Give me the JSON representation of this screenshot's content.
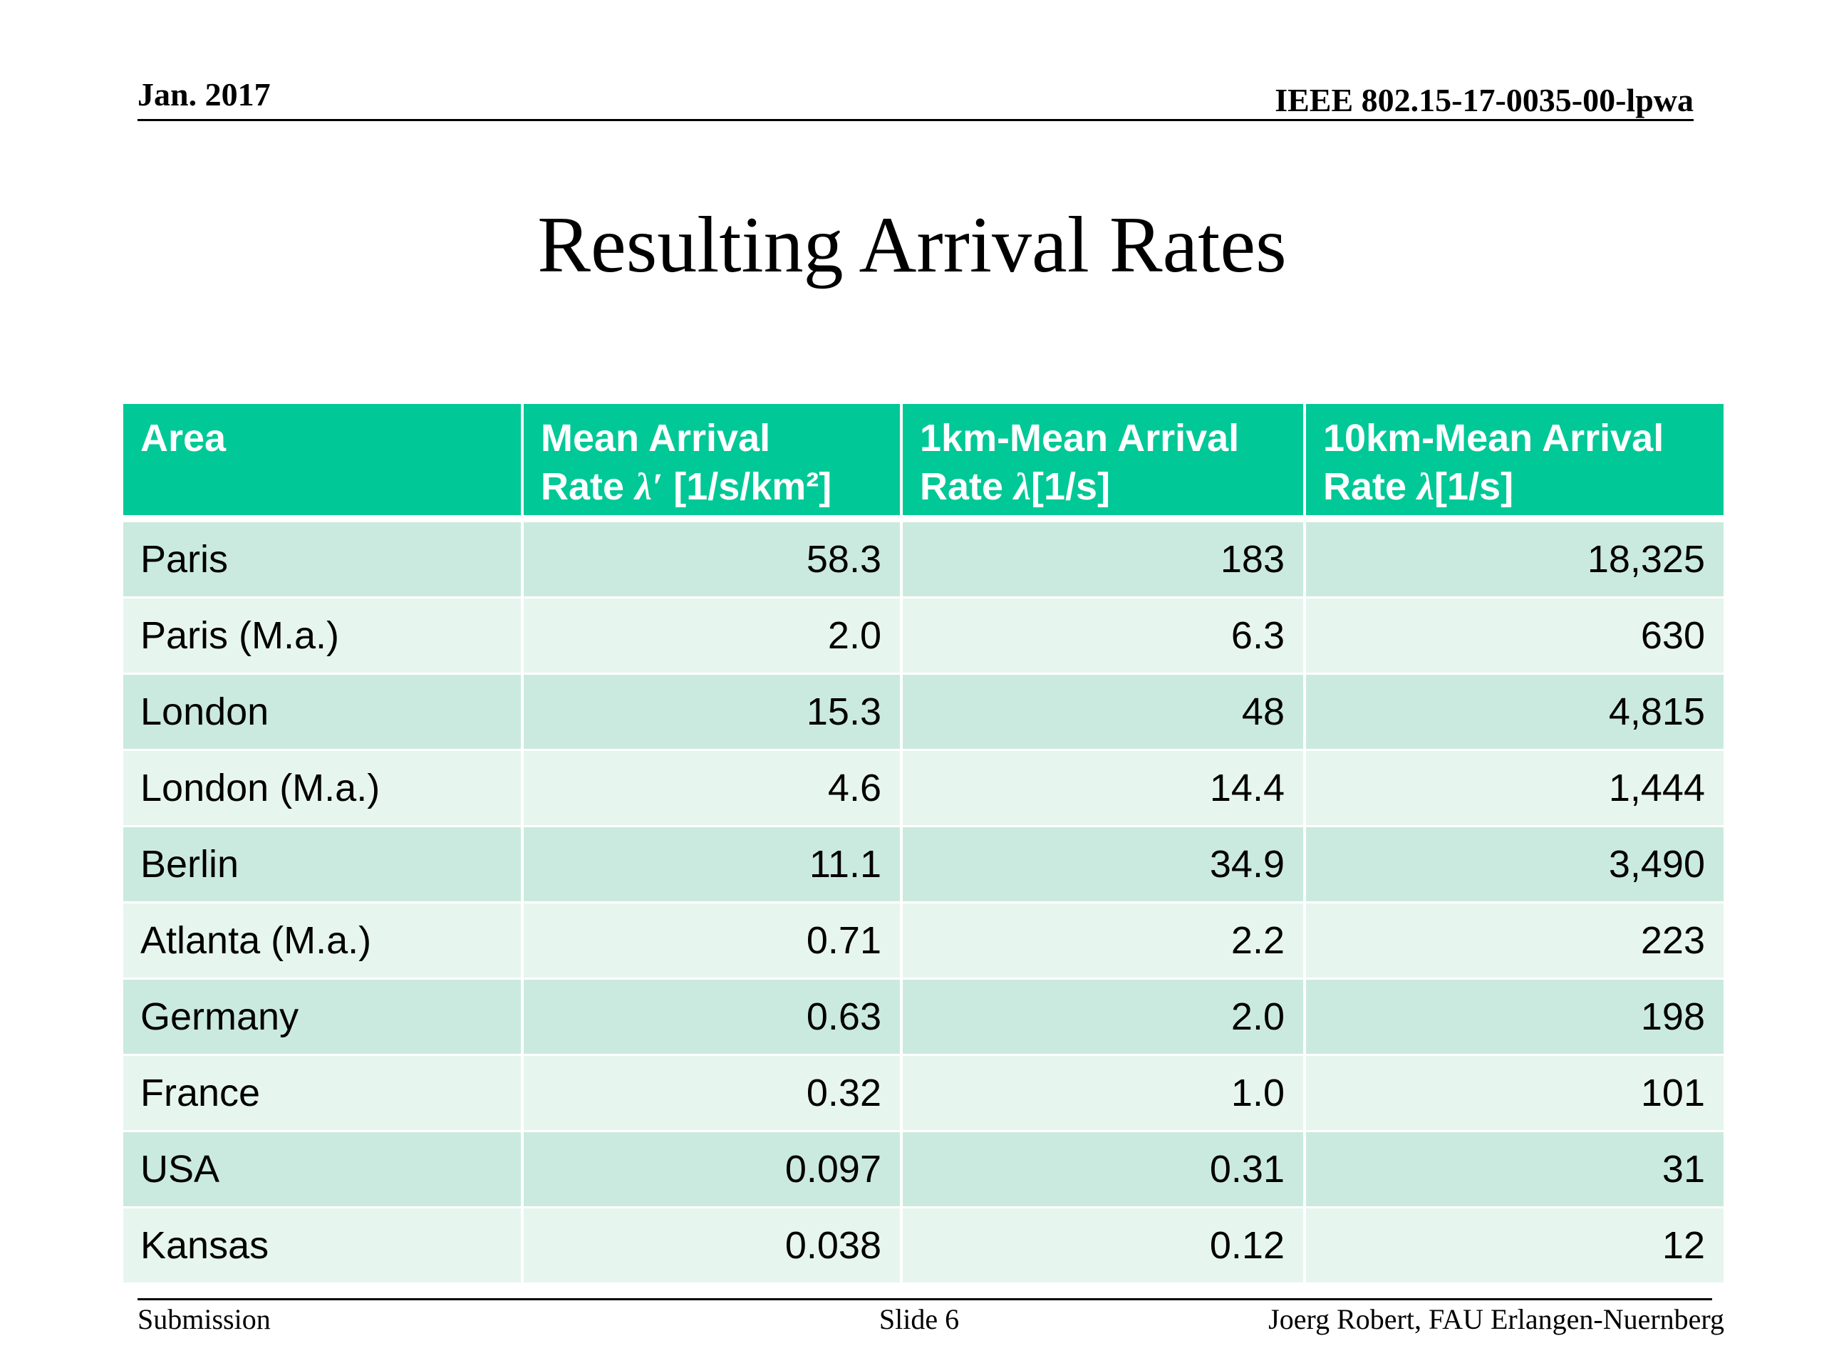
{
  "header": {
    "date": "Jan. 2017",
    "doc_id": "IEEE 802.15-17-0035-00-lpwa"
  },
  "title": "Resulting Arrival Rates",
  "table": {
    "columns": [
      {
        "line1": "Area",
        "line2": "",
        "symbol": "",
        "unit": ""
      },
      {
        "line1": "Mean Arrival",
        "line2": "Rate ",
        "symbol": "λ′",
        "unit": " [1/s/km²]"
      },
      {
        "line1": "1km-Mean Arrival",
        "line2": "Rate  ",
        "symbol": "λ",
        "unit": "[1/s]"
      },
      {
        "line1": "10km-Mean Arrival",
        "line2": "Rate  ",
        "symbol": "λ",
        "unit": "[1/s]"
      }
    ],
    "rows": [
      {
        "area": "Paris",
        "mean": "58.3",
        "km1": "183",
        "km10": "18,325"
      },
      {
        "area": "Paris (M.a.)",
        "mean": "2.0",
        "km1": "6.3",
        "km10": "630"
      },
      {
        "area": "London",
        "mean": "15.3",
        "km1": "48",
        "km10": "4,815"
      },
      {
        "area": "London (M.a.)",
        "mean": "4.6",
        "km1": "14.4",
        "km10": "1,444"
      },
      {
        "area": "Berlin",
        "mean": "11.1",
        "km1": "34.9",
        "km10": "3,490"
      },
      {
        "area": "Atlanta (M.a.)",
        "mean": "0.71",
        "km1": "2.2",
        "km10": "223"
      },
      {
        "area": "Germany",
        "mean": "0.63",
        "km1": "2.0",
        "km10": "198"
      },
      {
        "area": "France",
        "mean": "0.32",
        "km1": "1.0",
        "km10": "101"
      },
      {
        "area": "USA",
        "mean": "0.097",
        "km1": "0.31",
        "km10": "31"
      },
      {
        "area": "Kansas",
        "mean": "0.038",
        "km1": "0.12",
        "km10": "12"
      }
    ]
  },
  "footer": {
    "left": "Submission",
    "center": "Slide 6",
    "right": "Joerg Robert, FAU Erlangen-Nuernberg"
  },
  "colors": {
    "header_bg": "#00c896",
    "row_dark": "#cbeadf",
    "row_light": "#e7f5ef"
  }
}
